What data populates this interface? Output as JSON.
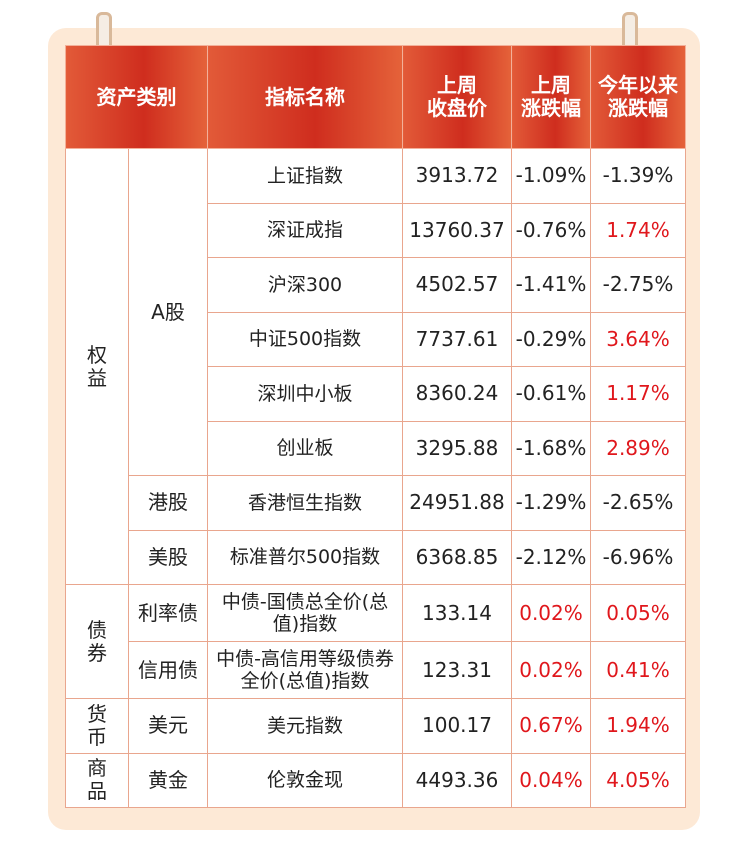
{
  "table": {
    "header": [
      [
        "资产类别"
      ],
      [
        "指标名称"
      ],
      [
        "上周",
        "收盘价"
      ],
      [
        "上周",
        "涨跌幅"
      ],
      [
        "今年以来",
        "涨跌幅"
      ]
    ],
    "groups": [
      {
        "label": "权益",
        "subs": [
          {
            "label": "A股",
            "rows": [
              [
                "上证指数",
                "3913.72",
                "-1.09%",
                "-1.39%"
              ],
              [
                "深证成指",
                "13760.37",
                "-0.76%",
                "1.74%"
              ],
              [
                "沪深300",
                "4502.57",
                "-1.41%",
                "-2.75%"
              ],
              [
                "中证500指数",
                "7737.61",
                "-0.29%",
                "3.64%"
              ],
              [
                "深圳中小板",
                "8360.24",
                "-0.61%",
                "1.17%"
              ],
              [
                "创业板",
                "3295.88",
                "-1.68%",
                "2.89%"
              ]
            ]
          },
          {
            "label": "港股",
            "rows": [
              [
                "香港恒生指数",
                "24951.88",
                "-1.29%",
                "-2.65%"
              ]
            ]
          },
          {
            "label": "美股",
            "rows": [
              [
                "标准普尔500指数",
                "6368.85",
                "-2.12%",
                "-6.96%"
              ]
            ]
          }
        ]
      },
      {
        "label": "债券",
        "subs": [
          {
            "label": "利率债",
            "rows": [
              [
                "中债-国债总全价(总值)指数",
                "133.14",
                "0.02%",
                "0.05%"
              ]
            ]
          },
          {
            "label": "信用债",
            "rows": [
              [
                "中债-高信用等级债券全价(总值)指数",
                "123.31",
                "0.02%",
                "0.41%"
              ]
            ]
          }
        ]
      },
      {
        "label": "货币",
        "subs": [
          {
            "label": "美元",
            "rows": [
              [
                "美元指数",
                "100.17",
                "0.67%",
                "1.94%"
              ]
            ]
          }
        ]
      },
      {
        "label": "商品",
        "subs": [
          {
            "label": "黄金",
            "rows": [
              [
                "伦敦金现",
                "4493.36",
                "0.04%",
                "4.05%"
              ]
            ]
          }
        ]
      }
    ]
  }
}
